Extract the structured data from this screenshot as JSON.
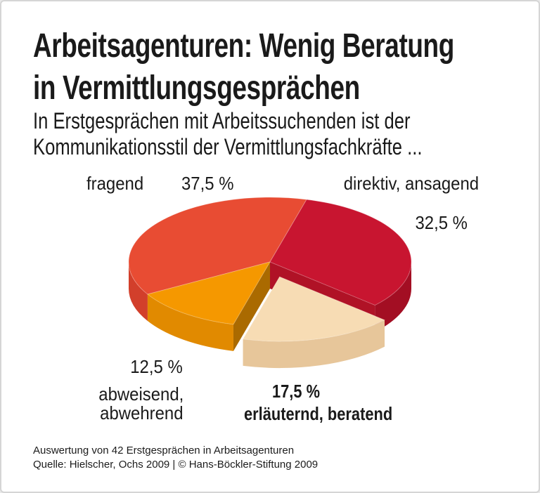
{
  "header": {
    "title_line1": "Arbeitsagenturen: Wenig Beratung",
    "title_line2": "in Vermittlungsgesprächen",
    "subtitle_line1": "In Erstgesprächen mit Arbeitssuchenden ist der",
    "subtitle_line2": "Kommunikationsstil der Vermittlungsfachkräfte ..."
  },
  "chart_data": {
    "type": "pie",
    "style": "3d-exploded",
    "unit": "%",
    "order": "clockwise",
    "start_angle_deg": 15,
    "title": "Kommunikationsstil der Vermittlungsfachkräfte in Erstgesprächen",
    "slices": [
      {
        "label": "fragend",
        "value": 37.5,
        "value_label": "37,5 %",
        "color": "#e84c33",
        "side_color": "#d23f2b",
        "cut_color": "#c63a26",
        "exploded": false,
        "emphasis": false
      },
      {
        "label": "direktiv, ansagend",
        "value": 32.5,
        "value_label": "32,5 %",
        "color": "#c81530",
        "side_color": "#a30e23",
        "cut_color": "#b01226",
        "exploded": false,
        "emphasis": false
      },
      {
        "label": "abweisend, abwehrend",
        "label_lines": [
          "abweisend,",
          "abwehrend"
        ],
        "value": 12.5,
        "value_label": "12,5 %",
        "color": "#f59800",
        "side_color": "#e18a00",
        "cut_color": "#aa6a00",
        "exploded": false,
        "emphasis": false
      },
      {
        "label": "erläuternd, beratend",
        "value": 17.5,
        "value_label": "17,5 %",
        "color": "#f7dcb4",
        "side_color": "#e7c69a",
        "cut_color": "#edcfa6",
        "exploded": true,
        "emphasis": true
      }
    ]
  },
  "footer": {
    "line1": "Auswertung von 42 Erstgesprächen in Arbeitsagenturen",
    "line2": "Quelle: Hielscher, Ochs 2009 | © Hans-Böckler-Stiftung 2009"
  }
}
